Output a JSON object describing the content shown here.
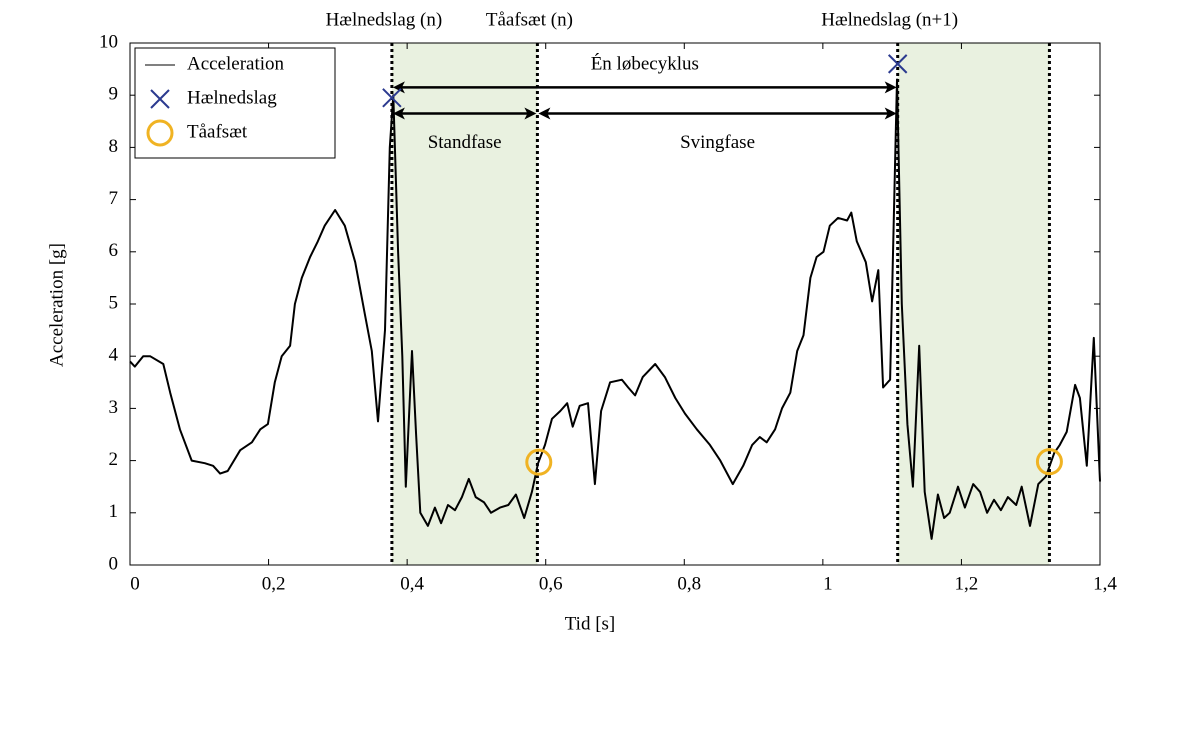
{
  "chart_data": {
    "type": "line",
    "xlabel": "Tid [s]",
    "ylabel": "Acceleration [g]",
    "xlim": [
      0,
      1.4
    ],
    "ylim": [
      0,
      10
    ],
    "xticks": [
      0,
      {
        "value": 0.2,
        "label": "0,2"
      },
      {
        "value": 0.4,
        "label": "0,4"
      },
      {
        "value": 0.6,
        "label": "0,6"
      },
      {
        "value": 0.8,
        "label": "0,8"
      },
      1,
      {
        "value": 1.2,
        "label": "1,2"
      },
      {
        "value": 1.4,
        "label": "1,4"
      }
    ],
    "yticks": [
      0,
      1,
      2,
      3,
      4,
      5,
      6,
      7,
      8,
      9,
      10
    ],
    "grid": false,
    "legend": "upper left",
    "series": [
      {
        "name": "Acceleration",
        "type": "line",
        "color": "#000000",
        "x": [
          0,
          0.007,
          0.019,
          0.029,
          0.048,
          0.058,
          0.072,
          0.089,
          0.108,
          0.12,
          0.13,
          0.141,
          0.159,
          0.176,
          0.188,
          0.199,
          0.209,
          0.219,
          0.231,
          0.238,
          0.248,
          0.26,
          0.271,
          0.281,
          0.296,
          0.31,
          0.325,
          0.339,
          0.349,
          0.358,
          0.368,
          0.375,
          0.38,
          0.387,
          0.393,
          0.398,
          0.407,
          0.413,
          0.419,
          0.43,
          0.44,
          0.449,
          0.459,
          0.469,
          0.479,
          0.489,
          0.499,
          0.511,
          0.521,
          0.534,
          0.546,
          0.557,
          0.569,
          0.58,
          0.589,
          0.599,
          0.609,
          0.621,
          0.631,
          0.639,
          0.649,
          0.661,
          0.671,
          0.68,
          0.693,
          0.71,
          0.719,
          0.729,
          0.74,
          0.758,
          0.772,
          0.787,
          0.801,
          0.818,
          0.837,
          0.852,
          0.87,
          0.885,
          0.898,
          0.909,
          0.919,
          0.931,
          0.941,
          0.953,
          0.963,
          0.972,
          0.982,
          0.991,
          1.001,
          1.01,
          1.022,
          1.035,
          1.041,
          1.049,
          1.062,
          1.071,
          1.08,
          1.087,
          1.097,
          1.107,
          1.114,
          1.122,
          1.13,
          1.139,
          1.147,
          1.157,
          1.166,
          1.175,
          1.183,
          1.195,
          1.205,
          1.217,
          1.227,
          1.237,
          1.247,
          1.257,
          1.267,
          1.279,
          1.287,
          1.299,
          1.311,
          1.322,
          1.334,
          1.342,
          1.352,
          1.364,
          1.371,
          1.381,
          1.391,
          1.4
        ],
        "values": [
          3.9,
          3.8,
          4.0,
          4.0,
          3.85,
          3.3,
          2.6,
          2.0,
          1.95,
          1.9,
          1.75,
          1.8,
          2.2,
          2.35,
          2.6,
          2.7,
          3.5,
          4.0,
          4.2,
          5.0,
          5.5,
          5.9,
          6.2,
          6.5,
          6.8,
          6.5,
          5.8,
          4.8,
          4.1,
          2.75,
          4.5,
          8.0,
          9.0,
          6.0,
          4.0,
          1.5,
          4.1,
          2.5,
          1.0,
          0.75,
          1.1,
          0.8,
          1.15,
          1.05,
          1.3,
          1.65,
          1.3,
          1.2,
          1.0,
          1.1,
          1.15,
          1.35,
          0.9,
          1.4,
          1.95,
          2.3,
          2.8,
          2.95,
          3.1,
          2.65,
          3.05,
          3.1,
          1.55,
          2.95,
          3.5,
          3.55,
          3.4,
          3.25,
          3.6,
          3.85,
          3.6,
          3.2,
          2.9,
          2.6,
          2.3,
          2.0,
          1.55,
          1.9,
          2.3,
          2.45,
          2.35,
          2.6,
          3.0,
          3.3,
          4.1,
          4.4,
          5.5,
          5.9,
          6.0,
          6.5,
          6.65,
          6.6,
          6.75,
          6.2,
          5.8,
          5.05,
          5.65,
          3.4,
          3.55,
          9.3,
          5.0,
          2.7,
          1.5,
          4.2,
          1.4,
          0.5,
          1.35,
          0.9,
          1.0,
          1.5,
          1.1,
          1.55,
          1.4,
          1.0,
          1.25,
          1.05,
          1.3,
          1.15,
          1.5,
          0.75,
          1.55,
          1.7,
          2.15,
          2.3,
          2.55,
          3.45,
          3.2,
          1.9,
          4.35,
          1.6
        ]
      },
      {
        "name": "Hælnedslag",
        "type": "cross",
        "color": "#2b3a8f",
        "x": [
          0.378,
          1.108
        ],
        "values": [
          8.95,
          9.6
        ]
      },
      {
        "name": "Tåafsæt",
        "type": "circle",
        "color": "#f0b323",
        "x": [
          0.59,
          1.327
        ],
        "values": [
          1.97,
          1.98
        ]
      }
    ],
    "events": [
      {
        "x": 0.378,
        "label": "Hælnedslag (n)"
      },
      {
        "x": 0.588,
        "label": "Tåafsæt (n)"
      },
      {
        "x": 1.108,
        "label": "Hælnedslag (n+1)"
      },
      {
        "x": 1.327
      }
    ],
    "shaded": [
      [
        0.378,
        0.588
      ],
      [
        1.108,
        1.327
      ]
    ],
    "shade_color": "#e9f1e0",
    "arrows": [
      {
        "label": "Én løbecyklus",
        "x": [
          0.378,
          1.108
        ],
        "y": 9.15,
        "label_position": "above"
      },
      {
        "label": "Standfase",
        "x": [
          0.378,
          0.588
        ],
        "y": 8.65,
        "label_position": "below"
      },
      {
        "label": "Svingfase",
        "x": [
          0.588,
          1.108
        ],
        "y": 8.65,
        "label_position": "below"
      }
    ]
  }
}
